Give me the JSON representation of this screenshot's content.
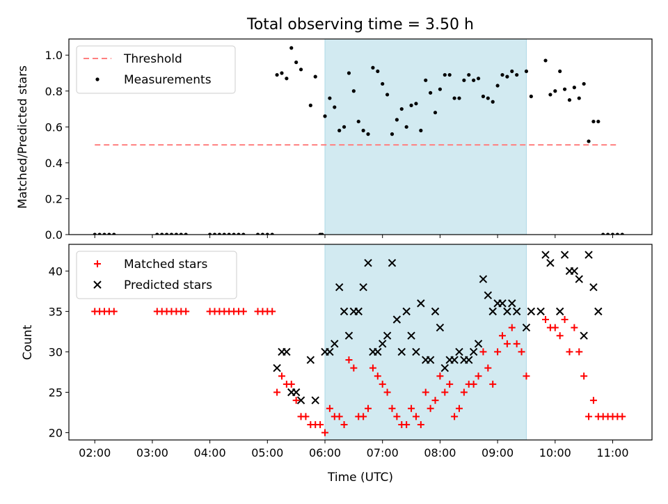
{
  "title": "Total observing time = 3.50 h",
  "colors": {
    "shade": "#add8e6",
    "threshold": "#ff7f7f",
    "measurement": "#000000",
    "matched": "#ff0000",
    "predicted": "#000000"
  },
  "chart_data": [
    {
      "type": "scatter",
      "ylabel": "Matched/Predicted stars",
      "ylim": [
        0,
        1.09
      ],
      "yticks": [
        {
          "v": 0.0,
          "label": "0.0"
        },
        {
          "v": 0.2,
          "label": "0.2"
        },
        {
          "v": 0.4,
          "label": "0.4"
        },
        {
          "v": 0.6,
          "label": "0.6"
        },
        {
          "v": 0.8,
          "label": "0.8"
        },
        {
          "v": 1.0,
          "label": "1.0"
        }
      ],
      "legend": [
        {
          "key": "threshold",
          "label": "Threshold"
        },
        {
          "key": "measurement",
          "label": "Measurements"
        }
      ],
      "legend_position": "top-left",
      "threshold": {
        "from": "02:00",
        "to": "11:05",
        "y": 0.5
      },
      "shaded_interval": [
        "06:00",
        "09:30"
      ],
      "measurements": [
        [
          "02:00",
          0
        ],
        [
          "02:05",
          0
        ],
        [
          "02:10",
          0
        ],
        [
          "02:15",
          0
        ],
        [
          "02:20",
          0
        ],
        [
          "03:05",
          0
        ],
        [
          "03:10",
          0
        ],
        [
          "03:15",
          0
        ],
        [
          "03:20",
          0
        ],
        [
          "03:25",
          0
        ],
        [
          "03:30",
          0
        ],
        [
          "03:35",
          0
        ],
        [
          "04:00",
          0
        ],
        [
          "04:05",
          0
        ],
        [
          "04:10",
          0
        ],
        [
          "04:15",
          0
        ],
        [
          "04:20",
          0
        ],
        [
          "04:25",
          0
        ],
        [
          "04:30",
          0
        ],
        [
          "04:35",
          0
        ],
        [
          "04:50",
          0
        ],
        [
          "04:55",
          0
        ],
        [
          "05:00",
          0
        ],
        [
          "05:05",
          0
        ],
        [
          "05:10",
          0.89
        ],
        [
          "05:15",
          0.9
        ],
        [
          "05:20",
          0.87
        ],
        [
          "05:25",
          1.04
        ],
        [
          "05:30",
          0.96
        ],
        [
          "05:35",
          0.92
        ],
        [
          "05:45",
          0.72
        ],
        [
          "05:50",
          0.88
        ],
        [
          "05:55",
          0.0
        ],
        [
          "05:57",
          0.0
        ],
        [
          "06:00",
          0.66
        ],
        [
          "06:05",
          0.76
        ],
        [
          "06:10",
          0.71
        ],
        [
          "06:15",
          0.58
        ],
        [
          "06:20",
          0.6
        ],
        [
          "06:25",
          0.9
        ],
        [
          "06:30",
          0.8
        ],
        [
          "06:35",
          0.63
        ],
        [
          "06:40",
          0.58
        ],
        [
          "06:45",
          0.56
        ],
        [
          "06:50",
          0.93
        ],
        [
          "06:55",
          0.91
        ],
        [
          "07:00",
          0.84
        ],
        [
          "07:05",
          0.78
        ],
        [
          "07:10",
          0.56
        ],
        [
          "07:15",
          0.64
        ],
        [
          "07:20",
          0.7
        ],
        [
          "07:25",
          0.6
        ],
        [
          "07:30",
          0.72
        ],
        [
          "07:35",
          0.73
        ],
        [
          "07:40",
          0.58
        ],
        [
          "07:45",
          0.86
        ],
        [
          "07:50",
          0.79
        ],
        [
          "07:55",
          0.68
        ],
        [
          "08:00",
          0.81
        ],
        [
          "08:05",
          0.89
        ],
        [
          "08:10",
          0.89
        ],
        [
          "08:15",
          0.76
        ],
        [
          "08:20",
          0.76
        ],
        [
          "08:25",
          0.86
        ],
        [
          "08:30",
          0.89
        ],
        [
          "08:35",
          0.86
        ],
        [
          "08:40",
          0.87
        ],
        [
          "08:45",
          0.77
        ],
        [
          "08:50",
          0.76
        ],
        [
          "08:55",
          0.74
        ],
        [
          "09:00",
          0.83
        ],
        [
          "09:05",
          0.89
        ],
        [
          "09:10",
          0.88
        ],
        [
          "09:15",
          0.91
        ],
        [
          "09:20",
          0.89
        ],
        [
          "09:30",
          0.91
        ],
        [
          "09:35",
          0.77
        ],
        [
          "09:50",
          0.97
        ],
        [
          "09:55",
          0.78
        ],
        [
          "10:00",
          0.8
        ],
        [
          "10:05",
          0.91
        ],
        [
          "10:10",
          0.81
        ],
        [
          "10:15",
          0.75
        ],
        [
          "10:20",
          0.82
        ],
        [
          "10:25",
          0.76
        ],
        [
          "10:30",
          0.84
        ],
        [
          "10:35",
          0.52
        ],
        [
          "10:40",
          0.63
        ],
        [
          "10:45",
          0.63
        ],
        [
          "10:50",
          0
        ],
        [
          "10:55",
          0
        ],
        [
          "11:00",
          0
        ],
        [
          "11:05",
          0
        ],
        [
          "11:10",
          0
        ]
      ]
    },
    {
      "type": "scatter",
      "xlabel": "Time (UTC)",
      "ylabel": "Count",
      "ylim": [
        19.1,
        43.3
      ],
      "yticks": [
        {
          "v": 20,
          "label": "20"
        },
        {
          "v": 25,
          "label": "25"
        },
        {
          "v": 30,
          "label": "30"
        },
        {
          "v": 35,
          "label": "35"
        },
        {
          "v": 40,
          "label": "40"
        }
      ],
      "xticks": [
        "02:00",
        "03:00",
        "04:00",
        "05:00",
        "06:00",
        "07:00",
        "08:00",
        "09:00",
        "10:00",
        "11:00"
      ],
      "legend": [
        {
          "key": "matched",
          "label": "Matched stars"
        },
        {
          "key": "predicted",
          "label": "Predicted stars"
        }
      ],
      "legend_position": "top-left",
      "shaded_interval": [
        "06:00",
        "09:30"
      ],
      "matched": [
        [
          "02:00",
          35
        ],
        [
          "02:05",
          35
        ],
        [
          "02:10",
          35
        ],
        [
          "02:15",
          35
        ],
        [
          "02:20",
          35
        ],
        [
          "03:05",
          35
        ],
        [
          "03:10",
          35
        ],
        [
          "03:15",
          35
        ],
        [
          "03:20",
          35
        ],
        [
          "03:25",
          35
        ],
        [
          "03:30",
          35
        ],
        [
          "03:35",
          35
        ],
        [
          "04:00",
          35
        ],
        [
          "04:05",
          35
        ],
        [
          "04:10",
          35
        ],
        [
          "04:15",
          35
        ],
        [
          "04:20",
          35
        ],
        [
          "04:25",
          35
        ],
        [
          "04:30",
          35
        ],
        [
          "04:35",
          35
        ],
        [
          "04:50",
          35
        ],
        [
          "04:55",
          35
        ],
        [
          "05:00",
          35
        ],
        [
          "05:05",
          35
        ],
        [
          "05:10",
          25
        ],
        [
          "05:15",
          27
        ],
        [
          "05:20",
          26
        ],
        [
          "05:25",
          26
        ],
        [
          "05:30",
          24
        ],
        [
          "05:35",
          22
        ],
        [
          "05:40",
          22
        ],
        [
          "05:45",
          21
        ],
        [
          "05:50",
          21
        ],
        [
          "05:55",
          21
        ],
        [
          "06:00",
          20
        ],
        [
          "06:05",
          23
        ],
        [
          "06:10",
          22
        ],
        [
          "06:15",
          22
        ],
        [
          "06:20",
          21
        ],
        [
          "06:25",
          29
        ],
        [
          "06:30",
          28
        ],
        [
          "06:35",
          22
        ],
        [
          "06:40",
          22
        ],
        [
          "06:45",
          23
        ],
        [
          "06:50",
          28
        ],
        [
          "06:55",
          27
        ],
        [
          "07:00",
          26
        ],
        [
          "07:05",
          25
        ],
        [
          "07:10",
          23
        ],
        [
          "07:15",
          22
        ],
        [
          "07:20",
          21
        ],
        [
          "07:25",
          21
        ],
        [
          "07:30",
          23
        ],
        [
          "07:35",
          22
        ],
        [
          "07:40",
          21
        ],
        [
          "07:45",
          25
        ],
        [
          "07:50",
          23
        ],
        [
          "07:55",
          24
        ],
        [
          "08:00",
          27
        ],
        [
          "08:05",
          25
        ],
        [
          "08:10",
          26
        ],
        [
          "08:15",
          22
        ],
        [
          "08:20",
          23
        ],
        [
          "08:25",
          25
        ],
        [
          "08:30",
          26
        ],
        [
          "08:35",
          26
        ],
        [
          "08:40",
          27
        ],
        [
          "08:45",
          30
        ],
        [
          "08:50",
          28
        ],
        [
          "08:55",
          26
        ],
        [
          "09:00",
          30
        ],
        [
          "09:05",
          32
        ],
        [
          "09:10",
          31
        ],
        [
          "09:15",
          33
        ],
        [
          "09:20",
          31
        ],
        [
          "09:25",
          30
        ],
        [
          "09:30",
          27
        ],
        [
          "09:50",
          34
        ],
        [
          "09:55",
          33
        ],
        [
          "10:00",
          33
        ],
        [
          "10:05",
          32
        ],
        [
          "10:10",
          34
        ],
        [
          "10:15",
          30
        ],
        [
          "10:20",
          33
        ],
        [
          "10:25",
          30
        ],
        [
          "10:30",
          27
        ],
        [
          "10:35",
          22
        ],
        [
          "10:40",
          24
        ],
        [
          "10:45",
          22
        ],
        [
          "10:50",
          22
        ],
        [
          "10:55",
          22
        ],
        [
          "11:00",
          22
        ],
        [
          "11:05",
          22
        ],
        [
          "11:10",
          22
        ]
      ],
      "predicted": [
        [
          "05:10",
          28
        ],
        [
          "05:15",
          30
        ],
        [
          "05:20",
          30
        ],
        [
          "05:25",
          25
        ],
        [
          "05:30",
          25
        ],
        [
          "05:35",
          24
        ],
        [
          "05:45",
          29
        ],
        [
          "05:50",
          24
        ],
        [
          "06:00",
          30
        ],
        [
          "06:05",
          30
        ],
        [
          "06:10",
          31
        ],
        [
          "06:15",
          38
        ],
        [
          "06:20",
          35
        ],
        [
          "06:25",
          32
        ],
        [
          "06:30",
          35
        ],
        [
          "06:35",
          35
        ],
        [
          "06:40",
          38
        ],
        [
          "06:45",
          41
        ],
        [
          "06:50",
          30
        ],
        [
          "06:55",
          30
        ],
        [
          "07:00",
          31
        ],
        [
          "07:05",
          32
        ],
        [
          "07:10",
          41
        ],
        [
          "07:15",
          34
        ],
        [
          "07:20",
          30
        ],
        [
          "07:25",
          35
        ],
        [
          "07:30",
          32
        ],
        [
          "07:35",
          30
        ],
        [
          "07:40",
          36
        ],
        [
          "07:45",
          29
        ],
        [
          "07:50",
          29
        ],
        [
          "07:55",
          35
        ],
        [
          "08:00",
          33
        ],
        [
          "08:05",
          28
        ],
        [
          "08:10",
          29
        ],
        [
          "08:15",
          29
        ],
        [
          "08:20",
          30
        ],
        [
          "08:25",
          29
        ],
        [
          "08:30",
          29
        ],
        [
          "08:35",
          30
        ],
        [
          "08:40",
          31
        ],
        [
          "08:45",
          39
        ],
        [
          "08:50",
          37
        ],
        [
          "08:55",
          35
        ],
        [
          "09:00",
          36
        ],
        [
          "09:05",
          36
        ],
        [
          "09:10",
          35
        ],
        [
          "09:15",
          36
        ],
        [
          "09:20",
          35
        ],
        [
          "09:30",
          33
        ],
        [
          "09:35",
          35
        ],
        [
          "09:45",
          35
        ],
        [
          "09:50",
          42
        ],
        [
          "09:55",
          41
        ],
        [
          "10:05",
          35
        ],
        [
          "10:10",
          42
        ],
        [
          "10:15",
          40
        ],
        [
          "10:20",
          40
        ],
        [
          "10:25",
          39
        ],
        [
          "10:30",
          32
        ],
        [
          "10:35",
          42
        ],
        [
          "10:40",
          38
        ],
        [
          "10:45",
          35
        ]
      ]
    }
  ]
}
